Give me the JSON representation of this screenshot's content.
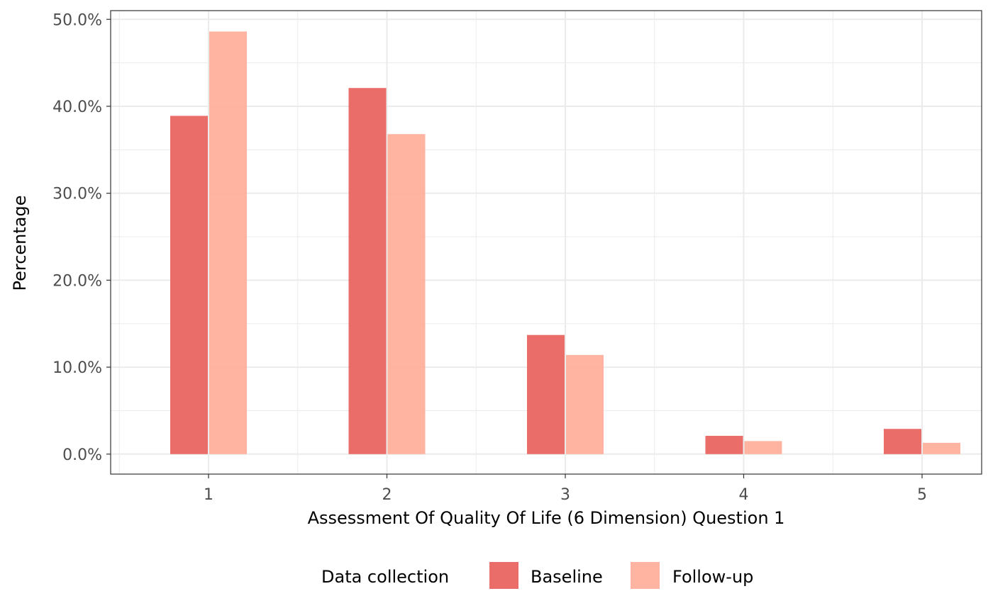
{
  "chart_data": {
    "type": "bar",
    "title": "",
    "xlabel": "Assessment Of Quality Of Life (6 Dimension) Question 1",
    "ylabel": "Percentage",
    "categories": [
      "1",
      "2",
      "3",
      "4",
      "5"
    ],
    "series": [
      {
        "name": "Baseline",
        "color": "#e8615c",
        "values": [
          38.9,
          42.1,
          13.7,
          2.1,
          2.9
        ]
      },
      {
        "name": "Follow-up",
        "color": "#ffaa94",
        "values": [
          48.6,
          36.8,
          11.4,
          1.5,
          1.3
        ]
      }
    ],
    "ylim": [
      -2.3,
      51.0
    ],
    "yticks": [
      0,
      10,
      20,
      30,
      40,
      50
    ],
    "ytick_labels": [
      "0.0%",
      "10.0%",
      "20.0%",
      "30.0%",
      "40.0%",
      "50.0%"
    ],
    "grid": true,
    "legend": {
      "title": "Data collection",
      "position": "bottom"
    }
  }
}
